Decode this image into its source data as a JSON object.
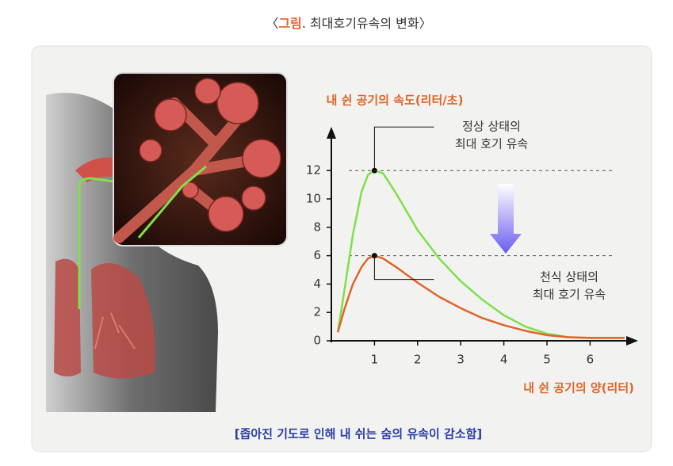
{
  "chart_data": {
    "type": "line",
    "title_parts": [
      "〈",
      "그림",
      ". 최대호기유속의 변화〉"
    ],
    "y_label": "내 쉰 공기의 속도(리터/초)",
    "x_label": "내 쉰 공기의 양(리터)",
    "caption": "[좁아진 기도로 인해 내 쉬는 숨의 유속이 감소함]",
    "x": [
      0.15,
      0.3,
      0.5,
      0.7,
      0.85,
      1,
      1.2,
      1.5,
      2,
      2.5,
      3,
      3.5,
      4,
      4.5,
      5,
      5.5,
      6,
      6.5,
      6.8
    ],
    "series": [
      {
        "color": "#7ee04a",
        "values": [
          0.6,
          3.5,
          7.5,
          10.5,
          11.7,
          12,
          11.8,
          10.4,
          7.8,
          5.8,
          4.2,
          2.9,
          1.8,
          1.0,
          0.5,
          0.25,
          0.2,
          0.2,
          0.2
        ]
      },
      {
        "color": "#e0642a",
        "values": [
          0.6,
          2.2,
          4,
          5.2,
          5.8,
          6,
          5.8,
          5.2,
          4.1,
          3.1,
          2.3,
          1.6,
          1.1,
          0.7,
          0.4,
          0.25,
          0.2,
          0.2,
          0.2
        ]
      }
    ],
    "annotations": [
      {
        "lines": [
          "정상 상태의",
          "최대 호기 유속"
        ],
        "series": 0,
        "point": 5
      },
      {
        "lines": [
          "천식 상태의",
          "최대 호기 유속"
        ],
        "series": 1,
        "point": 5
      }
    ],
    "xlim": [
      0,
      7
    ],
    "ylim": [
      0,
      15
    ],
    "xticks": [
      1,
      2,
      3,
      4,
      5,
      6
    ],
    "yticks": [
      0,
      2,
      4,
      6,
      8,
      10,
      12
    ]
  }
}
